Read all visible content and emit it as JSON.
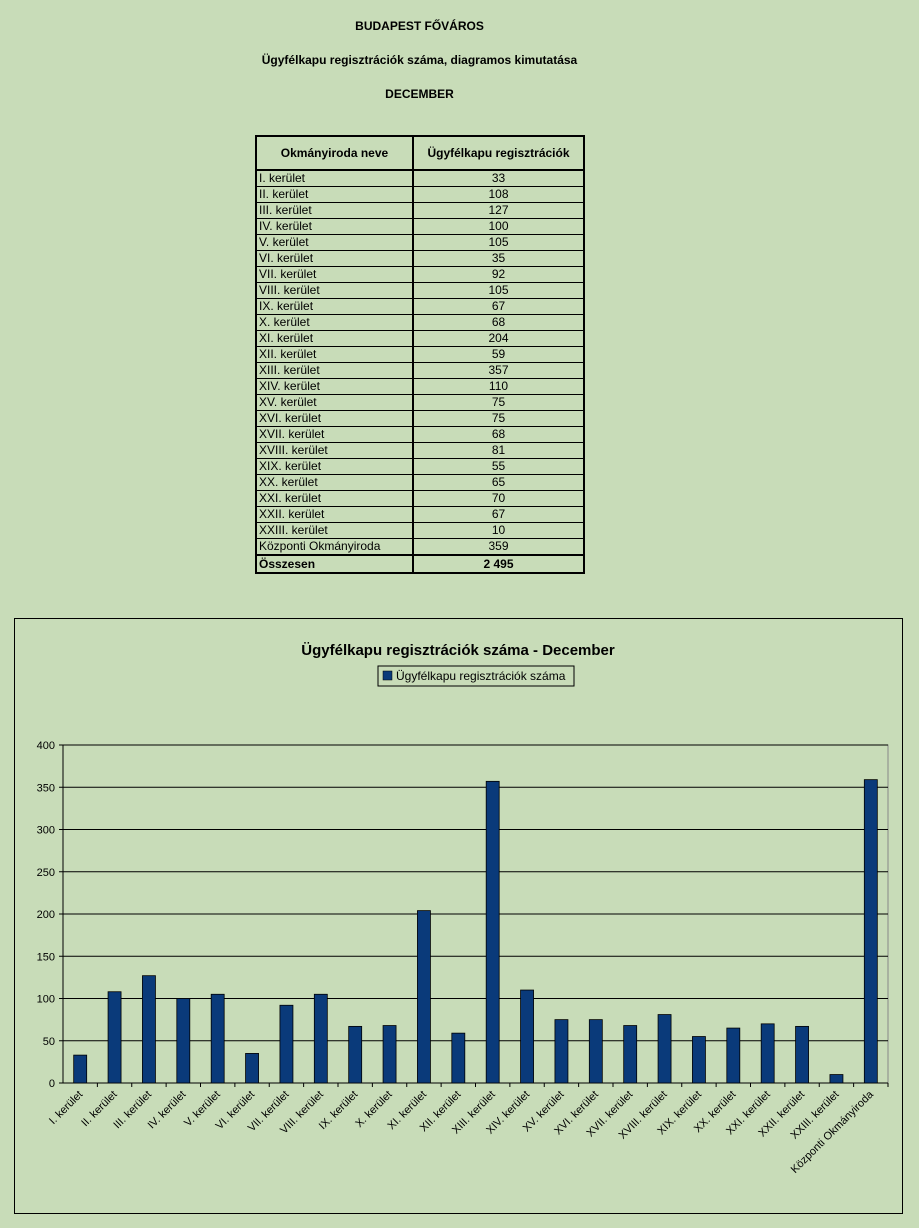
{
  "header": {
    "line1": "BUDAPEST FŐVÁROS",
    "line2": "Ügyfélkapu regisztrációk száma, diagramos kimutatása",
    "line3": "DECEMBER"
  },
  "table": {
    "col1": "Okmányiroda neve",
    "col2": "Ügyfélkapu regisztrációk",
    "rows": [
      {
        "name": "I. kerület",
        "value": "33"
      },
      {
        "name": "II. kerület",
        "value": "108"
      },
      {
        "name": "III. kerület",
        "value": "127"
      },
      {
        "name": "IV. kerület",
        "value": "100"
      },
      {
        "name": "V. kerület",
        "value": "105"
      },
      {
        "name": "VI. kerület",
        "value": "35"
      },
      {
        "name": "VII. kerület",
        "value": "92"
      },
      {
        "name": "VIII. kerület",
        "value": "105"
      },
      {
        "name": "IX. kerület",
        "value": "67"
      },
      {
        "name": "X. kerület",
        "value": "68"
      },
      {
        "name": "XI. kerület",
        "value": "204"
      },
      {
        "name": "XII. kerület",
        "value": "59"
      },
      {
        "name": "XIII. kerület",
        "value": "357"
      },
      {
        "name": "XIV. kerület",
        "value": "110"
      },
      {
        "name": "XV. kerület",
        "value": "75"
      },
      {
        "name": "XVI. kerület",
        "value": "75"
      },
      {
        "name": "XVII. kerület",
        "value": "68"
      },
      {
        "name": "XVIII. kerület",
        "value": "81"
      },
      {
        "name": "XIX. kerület",
        "value": "55"
      },
      {
        "name": "XX. kerület",
        "value": "65"
      },
      {
        "name": "XXI. kerület",
        "value": "70"
      },
      {
        "name": "XXII. kerület",
        "value": "67"
      },
      {
        "name": "XXIII. kerület",
        "value": "10"
      },
      {
        "name": "Központi Okmányiroda",
        "value": "359"
      }
    ],
    "total_label": "Összesen",
    "total_value": "2 495"
  },
  "colors": {
    "bar": "#0a3a7a",
    "background": "#c8dcb8"
  },
  "chart_data": {
    "type": "bar",
    "title": "Ügyfélkapu regisztrációk száma - December",
    "legend_position": "top-center",
    "grid": true,
    "ylim": [
      0,
      400
    ],
    "yticks": [
      0,
      50,
      100,
      150,
      200,
      250,
      300,
      350,
      400
    ],
    "categories": [
      "I. kerület",
      "II. kerület",
      "III. kerület",
      "IV. kerület",
      "V. kerület",
      "VI. kerület",
      "VII. kerület",
      "VIII. kerület",
      "IX. kerület",
      "X. kerület",
      "XI. kerület",
      "XII. kerület",
      "XIII. kerület",
      "XIV. kerület",
      "XV. kerület",
      "XVI. kerület",
      "XVII. kerület",
      "XVIII. kerület",
      "XIX. kerület",
      "XX. kerület",
      "XXI. kerület",
      "XXII. kerület",
      "XXIII. kerület",
      "Központi Okmányiroda"
    ],
    "series": [
      {
        "name": "Ügyfélkapu regisztrációk száma",
        "values": [
          33,
          108,
          127,
          100,
          105,
          35,
          92,
          105,
          67,
          68,
          204,
          59,
          357,
          110,
          75,
          75,
          68,
          81,
          55,
          65,
          70,
          67,
          10,
          359
        ]
      }
    ]
  }
}
